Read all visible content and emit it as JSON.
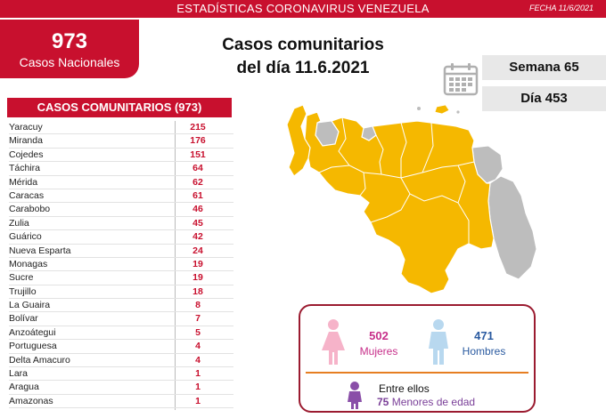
{
  "header": {
    "title": "ESTADÍSTICAS CORONAVIRUS VENEZUELA",
    "date": "FECHA 11/6/2021"
  },
  "national": {
    "count": "973",
    "label": "Casos Nacionales"
  },
  "headline": {
    "line1": "Casos comunitarios",
    "line2": "del día 11.6.2021"
  },
  "week": "Semana 65",
  "day": "Día 453",
  "list_title": "CASOS COMUNITARIOS (973)",
  "states": [
    {
      "name": "Yaracuy",
      "value": "215"
    },
    {
      "name": "Miranda",
      "value": "176"
    },
    {
      "name": "Cojedes",
      "value": "151"
    },
    {
      "name": "Táchira",
      "value": "64"
    },
    {
      "name": "Mérida",
      "value": "62"
    },
    {
      "name": "Caracas",
      "value": "61"
    },
    {
      "name": "Carabobo",
      "value": "46"
    },
    {
      "name": "Zulia",
      "value": "45"
    },
    {
      "name": "Guárico",
      "value": "42"
    },
    {
      "name": "Nueva Esparta",
      "value": "24"
    },
    {
      "name": "Monagas",
      "value": "19"
    },
    {
      "name": "Sucre",
      "value": "19"
    },
    {
      "name": "Trujillo",
      "value": "18"
    },
    {
      "name": "La Guaira",
      "value": "8"
    },
    {
      "name": "Bolívar",
      "value": "7"
    },
    {
      "name": "Anzoátegui",
      "value": "5"
    },
    {
      "name": "Portuguesa",
      "value": "4"
    },
    {
      "name": "Delta Amacuro",
      "value": "4"
    },
    {
      "name": "Lara",
      "value": "1"
    },
    {
      "name": "Aragua",
      "value": "1"
    },
    {
      "name": "Amazonas",
      "value": "1"
    }
  ],
  "gender": {
    "women_count": "502",
    "women_label": "Mujeres",
    "men_count": "471",
    "men_label": "Hombres"
  },
  "minors": {
    "intro": "Entre ellos",
    "count": "75",
    "label": "Menores de edad"
  },
  "colors": {
    "brand_red": "#c8102e",
    "map_affected": "#f5b800",
    "map_unaffected": "#bdbdbd",
    "women": "#c72f8a",
    "men": "#2a5aa0",
    "minors": "#7a3f98"
  }
}
